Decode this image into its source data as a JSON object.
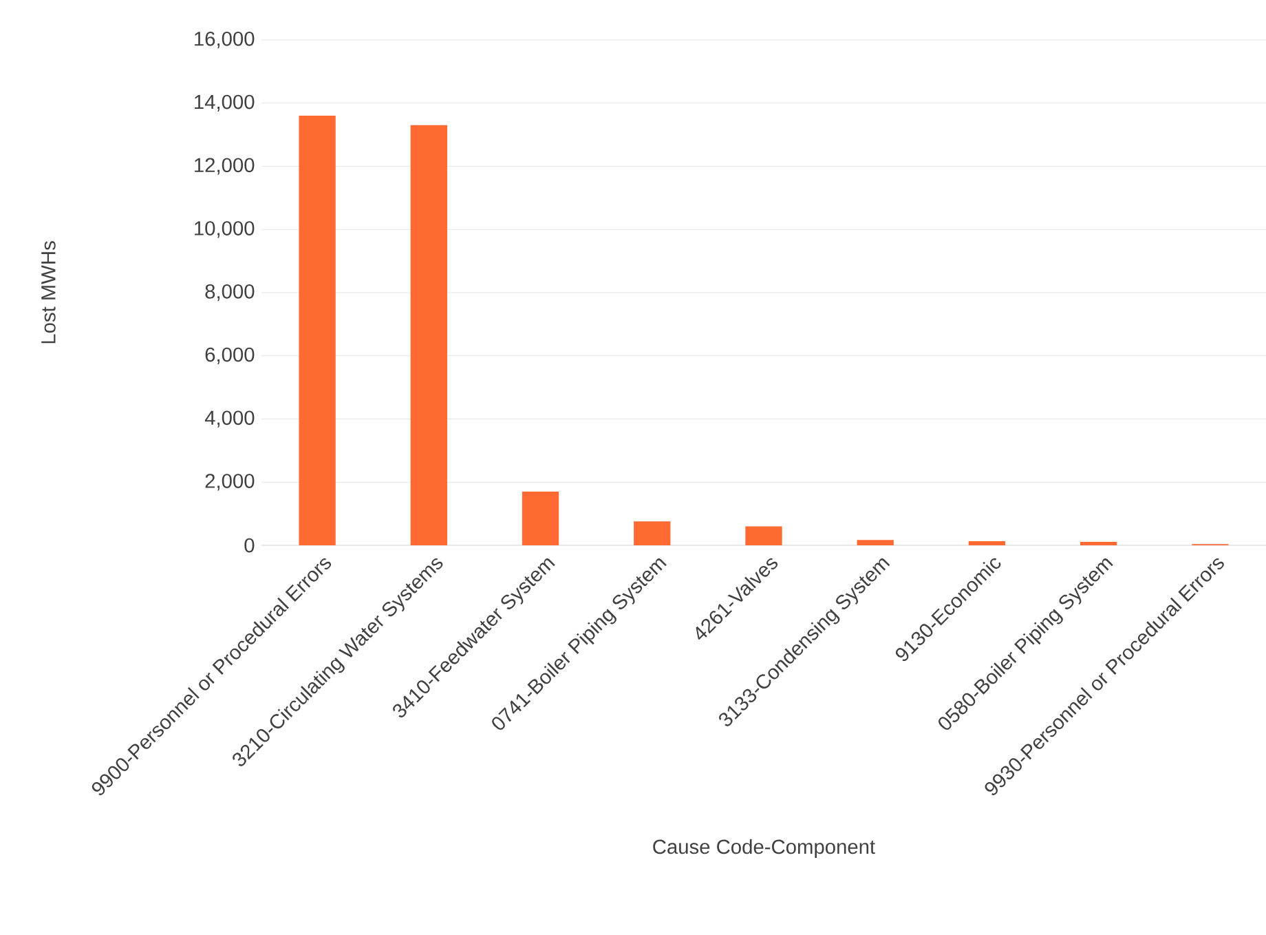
{
  "chart_data": {
    "type": "bar",
    "xlabel": "Cause Code-Component",
    "ylabel": "Lost MWHs",
    "categories": [
      "9900-Personnel or Procedural Errors",
      "3210-Circulating Water Systems",
      "3410-Feedwater System",
      "0741-Boiler Piping System",
      "4261-Valves",
      "3133-Condensing System",
      "9130-Economic",
      "0580-Boiler Piping System",
      "9930-Personnel or Procedural Errors"
    ],
    "values": [
      13600,
      13300,
      1700,
      760,
      600,
      170,
      130,
      110,
      40
    ],
    "color": "#ff6a33",
    "ylim": [
      0,
      16000
    ],
    "yticks": [
      {
        "value": 0,
        "label": "0"
      },
      {
        "value": 2000,
        "label": "2,000"
      },
      {
        "value": 4000,
        "label": "4,000"
      },
      {
        "value": 6000,
        "label": "6,000"
      },
      {
        "value": 8000,
        "label": "8,000"
      },
      {
        "value": 10000,
        "label": "10,000"
      },
      {
        "value": 12000,
        "label": "12,000"
      },
      {
        "value": 14000,
        "label": "14,000"
      },
      {
        "value": 16000,
        "label": "16,000"
      }
    ],
    "grid": "y"
  }
}
